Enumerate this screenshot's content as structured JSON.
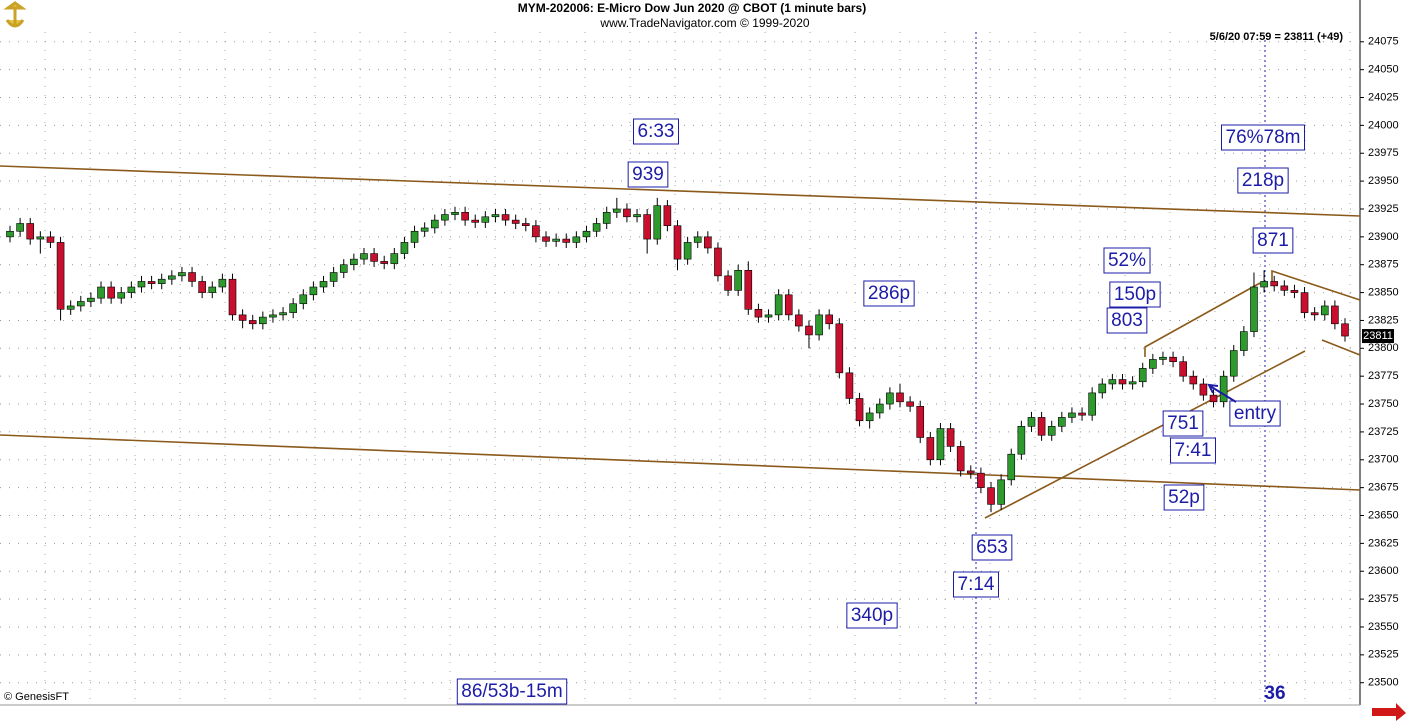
{
  "chart_data": {
    "type": "candlestick",
    "title": "MYM-202006:  E-Micro Dow Jun 2020 @ CBOT  (1 minute bars)",
    "subtitle": "www.TradeNavigator.com © 1999-2020",
    "info": "5/6/20 07:59 = 23811 (+49)",
    "credit": "© GenesisFT",
    "last_value": 23811,
    "up_color": "#2e9a2e",
    "down_color": "#c8102e",
    "ylim": [
      23480,
      24108
    ],
    "yticks": [
      23500,
      23525,
      23550,
      23575,
      23600,
      23625,
      23650,
      23675,
      23700,
      23725,
      23750,
      23775,
      23800,
      23825,
      23850,
      23875,
      23900,
      23925,
      23950,
      23975,
      24000,
      24025,
      24050,
      24075
    ],
    "grid": true,
    "open": [
      23900,
      23905,
      23912,
      23898,
      23900,
      23895,
      23835,
      23838,
      23842,
      23845,
      23855,
      23845,
      23850,
      23855,
      23860,
      23858,
      23862,
      23865,
      23868,
      23860,
      23850,
      23855,
      23862,
      23830,
      23825,
      23822,
      23828,
      23830,
      23832,
      23840,
      23848,
      23855,
      23860,
      23868,
      23875,
      23880,
      23885,
      23878,
      23876,
      23885,
      23895,
      23905,
      23908,
      23915,
      23920,
      23922,
      23915,
      23913,
      23918,
      23920,
      23915,
      23912,
      23910,
      23900,
      23896,
      23898,
      23895,
      23900,
      23905,
      23912,
      23922,
      23925,
      23918,
      23920,
      23898,
      23928,
      23910,
      23880,
      23895,
      23900,
      23890,
      23865,
      23852,
      23870,
      23835,
      23828,
      23830,
      23848,
      23830,
      23820,
      23812,
      23830,
      23822,
      23778,
      23755,
      23735,
      23742,
      23750,
      23760,
      23752,
      23748,
      23720,
      23700,
      23728,
      23712,
      23690,
      23688,
      23675,
      23660,
      23682,
      23705,
      23730,
      23738,
      23722,
      23730,
      23738,
      23742,
      23740,
      23760,
      23768,
      23772,
      23768,
      23770,
      23782,
      23790,
      23792,
      23788,
      23775,
      23768,
      23758,
      23752,
      23775,
      23798,
      23815,
      23855,
      23860,
      23856,
      23852,
      23850,
      23832,
      23830,
      23838,
      23822
    ],
    "high": [
      23910,
      23917,
      23917,
      23905,
      23905,
      23900,
      23843,
      23847,
      23850,
      23860,
      23860,
      23855,
      23860,
      23865,
      23865,
      23867,
      23870,
      23873,
      23873,
      23865,
      23860,
      23867,
      23867,
      23835,
      23830,
      23833,
      23835,
      23837,
      23845,
      23853,
      23860,
      23865,
      23873,
      23880,
      23885,
      23890,
      23890,
      23883,
      23890,
      23900,
      23910,
      23913,
      23920,
      23925,
      23927,
      23927,
      23920,
      23923,
      23925,
      23925,
      23920,
      23917,
      23915,
      23905,
      23903,
      23903,
      23905,
      23910,
      23917,
      23927,
      23935,
      23930,
      23925,
      23925,
      23935,
      23933,
      23915,
      23900,
      23905,
      23905,
      23895,
      23870,
      23875,
      23878,
      23840,
      23835,
      23853,
      23853,
      23835,
      23825,
      23835,
      23835,
      23827,
      23783,
      23760,
      23747,
      23755,
      23765,
      23768,
      23757,
      23753,
      23725,
      23733,
      23733,
      23717,
      23695,
      23693,
      23680,
      23687,
      23710,
      23735,
      23743,
      23743,
      23735,
      23743,
      23747,
      23747,
      23765,
      23773,
      23777,
      23777,
      23775,
      23787,
      23795,
      23797,
      23797,
      23793,
      23780,
      23773,
      23763,
      23780,
      23803,
      23820,
      23868,
      23870,
      23865,
      23861,
      23857,
      23855,
      23837,
      23843,
      23843,
      23827
    ],
    "low": [
      23895,
      23900,
      23893,
      23885,
      23890,
      23825,
      23830,
      23833,
      23837,
      23840,
      23840,
      23840,
      23845,
      23850,
      23853,
      23853,
      23857,
      23860,
      23855,
      23845,
      23845,
      23850,
      23825,
      23818,
      23817,
      23817,
      23823,
      23825,
      23827,
      23835,
      23843,
      23850,
      23855,
      23863,
      23870,
      23875,
      23873,
      23871,
      23871,
      23880,
      23890,
      23900,
      23903,
      23910,
      23915,
      23910,
      23908,
      23908,
      23913,
      23910,
      23907,
      23905,
      23895,
      23891,
      23891,
      23890,
      23890,
      23895,
      23900,
      23907,
      23917,
      23913,
      23913,
      23885,
      23893,
      23905,
      23870,
      23875,
      23890,
      23885,
      23860,
      23847,
      23847,
      23830,
      23823,
      23823,
      23825,
      23825,
      23815,
      23800,
      23807,
      23817,
      23773,
      23750,
      23730,
      23728,
      23737,
      23745,
      23747,
      23743,
      23715,
      23695,
      23695,
      23707,
      23685,
      23683,
      23670,
      23653,
      23655,
      23677,
      23700,
      23725,
      23717,
      23717,
      23725,
      23733,
      23735,
      23735,
      23755,
      23763,
      23763,
      23763,
      23765,
      23777,
      23785,
      23783,
      23770,
      23763,
      23753,
      23747,
      23747,
      23770,
      23793,
      23810,
      23850,
      23851,
      23847,
      23845,
      23827,
      23825,
      23825,
      23817,
      23806
    ],
    "close": [
      23905,
      23912,
      23898,
      23900,
      23895,
      23835,
      23838,
      23842,
      23845,
      23855,
      23845,
      23850,
      23855,
      23860,
      23858,
      23862,
      23865,
      23868,
      23860,
      23850,
      23855,
      23862,
      23830,
      23825,
      23822,
      23828,
      23830,
      23832,
      23840,
      23848,
      23855,
      23860,
      23868,
      23875,
      23880,
      23885,
      23878,
      23876,
      23885,
      23895,
      23905,
      23908,
      23915,
      23920,
      23922,
      23915,
      23913,
      23918,
      23920,
      23915,
      23912,
      23910,
      23900,
      23896,
      23898,
      23895,
      23900,
      23905,
      23912,
      23922,
      23925,
      23918,
      23920,
      23898,
      23928,
      23910,
      23880,
      23895,
      23900,
      23890,
      23865,
      23852,
      23870,
      23835,
      23828,
      23830,
      23848,
      23830,
      23820,
      23812,
      23830,
      23822,
      23778,
      23755,
      23735,
      23742,
      23750,
      23760,
      23752,
      23748,
      23720,
      23700,
      23728,
      23712,
      23690,
      23688,
      23675,
      23660,
      23682,
      23705,
      23730,
      23738,
      23722,
      23730,
      23738,
      23742,
      23740,
      23760,
      23768,
      23772,
      23768,
      23770,
      23782,
      23790,
      23792,
      23788,
      23775,
      23768,
      23758,
      23752,
      23775,
      23798,
      23815,
      23855,
      23860,
      23856,
      23852,
      23850,
      23832,
      23830,
      23838,
      23822,
      23811
    ],
    "annotations": [
      "6:33",
      "939",
      "76%78m",
      "218p",
      "871",
      "52%",
      "150p",
      "803",
      "286p",
      "751",
      "7:41",
      "entry",
      "52p",
      "653",
      "7:14",
      "340p",
      "86/53b-15m",
      "36"
    ]
  }
}
